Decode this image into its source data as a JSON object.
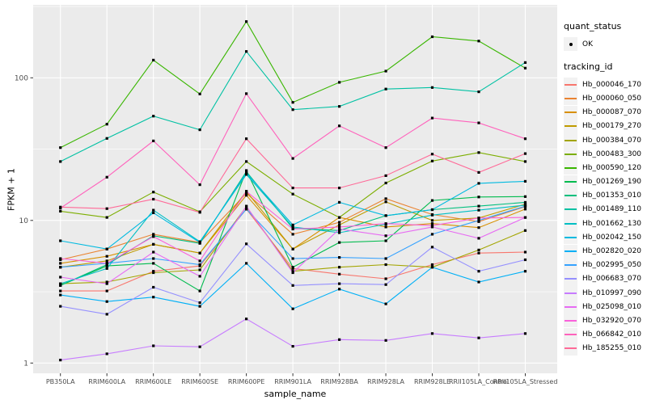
{
  "figure": {
    "x_axis_title": "sample_name",
    "y_axis_title": "FPKM + 1"
  },
  "legend": {
    "quant_status": {
      "title": "quant_status",
      "items": [
        {
          "label": "OK",
          "marker": "black-point"
        }
      ]
    },
    "tracking_id": {
      "title": "tracking_id"
    }
  },
  "chart_data": {
    "type": "line",
    "title": "",
    "xlabel": "sample_name",
    "ylabel": "FPKM + 1",
    "yscale": "log10",
    "yticks": [
      1,
      10,
      100
    ],
    "minor_gridlines": [
      3.1623,
      31.623,
      316.23
    ],
    "ylim": [
      0.85,
      325
    ],
    "grid": true,
    "legend_position": "right",
    "point_marker_label": "OK",
    "point_marker_color": "#000000",
    "panel_background": "#EBEBEB",
    "gridline_color": "#FFFFFF",
    "categories": [
      "PB350LA",
      "RRIM600LA",
      "RRIM600LE",
      "RRIM600SE",
      "RRIM600PE",
      "RRIM901LA",
      "RRIM928BA",
      "RRIM928LA",
      "RRIM928LE",
      "RRII105LA_Control",
      "RRII105LA_Stressed"
    ],
    "series": [
      {
        "name": "Hb_000046_170",
        "color": "#F8766D",
        "values": [
          3.2,
          3.2,
          4.4,
          4.8,
          12.0,
          4.6,
          4.2,
          3.9,
          4.9,
          5.9,
          6.0
        ]
      },
      {
        "name": "Hb_000060_050",
        "color": "#EA8331",
        "values": [
          5.3,
          6.3,
          8.0,
          7.0,
          15.5,
          8.0,
          9.7,
          14.2,
          11.0,
          9.8,
          12.5
        ]
      },
      {
        "name": "Hb_000087_070",
        "color": "#D89000",
        "values": [
          5.0,
          5.6,
          6.8,
          5.9,
          15.0,
          6.3,
          10.5,
          9.0,
          9.5,
          8.9,
          12.0
        ]
      },
      {
        "name": "Hb_000179_270",
        "color": "#C09B00",
        "values": [
          4.7,
          5.2,
          6.8,
          5.9,
          16.0,
          6.3,
          9.3,
          13.5,
          10.0,
          10.4,
          13.0
        ]
      },
      {
        "name": "Hb_000384_070",
        "color": "#A3A500",
        "values": [
          3.6,
          3.7,
          4.3,
          4.5,
          12.5,
          4.4,
          4.7,
          4.9,
          4.7,
          6.2,
          8.5
        ]
      },
      {
        "name": "Hb_000483_300",
        "color": "#7CAE00",
        "values": [
          11.6,
          10.5,
          15.8,
          11.5,
          25.9,
          15.3,
          10.5,
          18.3,
          26.1,
          29.9,
          25.9
        ]
      },
      {
        "name": "Hb_000590_120",
        "color": "#39B600",
        "values": [
          32.4,
          47.3,
          133,
          77,
          248,
          67.3,
          92.9,
          111.5,
          194,
          181,
          117
        ]
      },
      {
        "name": "Hb_001269_190",
        "color": "#00BB4E",
        "values": [
          3.5,
          4.8,
          5.0,
          3.2,
          22.4,
          4.7,
          7.0,
          7.2,
          13.8,
          14.6,
          14.7
        ]
      },
      {
        "name": "Hb_001353_010",
        "color": "#00BF7D",
        "values": [
          3.5,
          4.9,
          7.8,
          6.9,
          22.0,
          8.8,
          8.5,
          10.8,
          11.9,
          12.6,
          13.4
        ]
      },
      {
        "name": "Hb_001489_110",
        "color": "#00C1A3",
        "values": [
          25.9,
          37.6,
          53.9,
          43.2,
          153,
          59.8,
          63.0,
          83.4,
          85.5,
          79.8,
          128
        ]
      },
      {
        "name": "Hb_001662_130",
        "color": "#00BFC4",
        "values": [
          3.6,
          4.6,
          11.8,
          7.1,
          21.0,
          9.0,
          8.2,
          9.4,
          10.9,
          11.8,
          12.8
        ]
      },
      {
        "name": "Hb_002042_150",
        "color": "#00BAE0",
        "values": [
          7.2,
          6.3,
          11.3,
          7.0,
          21.5,
          9.3,
          13.4,
          10.8,
          11.9,
          18.2,
          18.8
        ]
      },
      {
        "name": "Hb_002820_020",
        "color": "#00B0F6",
        "values": [
          3.0,
          2.7,
          2.9,
          2.5,
          5.0,
          2.4,
          3.3,
          2.6,
          4.7,
          3.7,
          4.4
        ]
      },
      {
        "name": "Hb_002995_050",
        "color": "#35A2FF",
        "values": [
          4.7,
          5.0,
          5.4,
          4.9,
          12.0,
          5.4,
          5.5,
          5.4,
          8.0,
          10.0,
          12.6
        ]
      },
      {
        "name": "Hb_006683_070",
        "color": "#9590FF",
        "values": [
          2.5,
          2.2,
          3.4,
          2.65,
          6.85,
          3.5,
          3.6,
          3.55,
          6.5,
          4.4,
          5.3
        ]
      },
      {
        "name": "Hb_010997_090",
        "color": "#C77CFF",
        "values": [
          1.05,
          1.16,
          1.32,
          1.3,
          2.04,
          1.31,
          1.46,
          1.44,
          1.61,
          1.5,
          1.61
        ]
      },
      {
        "name": "Hb_025098_010",
        "color": "#E76BF3",
        "values": [
          4.0,
          3.6,
          6.0,
          4.06,
          12.6,
          4.3,
          8.7,
          7.8,
          9.0,
          7.5,
          10.5
        ]
      },
      {
        "name": "Hb_032920_070",
        "color": "#FA62DB",
        "values": [
          5.4,
          5.0,
          7.7,
          5.2,
          16.0,
          8.7,
          9.0,
          9.5,
          9.2,
          10.4,
          10.5
        ]
      },
      {
        "name": "Hb_066842_010",
        "color": "#FF62BC",
        "values": [
          12.2,
          20.1,
          36.1,
          17.8,
          77.4,
          27.2,
          46.0,
          32.4,
          52.2,
          48.3,
          37.4
        ]
      },
      {
        "name": "Hb_185255_010",
        "color": "#FF6A98",
        "values": [
          12.4,
          12.1,
          14.1,
          11.4,
          37.4,
          16.9,
          16.9,
          20.6,
          29.2,
          21.7,
          29.4
        ]
      }
    ]
  }
}
